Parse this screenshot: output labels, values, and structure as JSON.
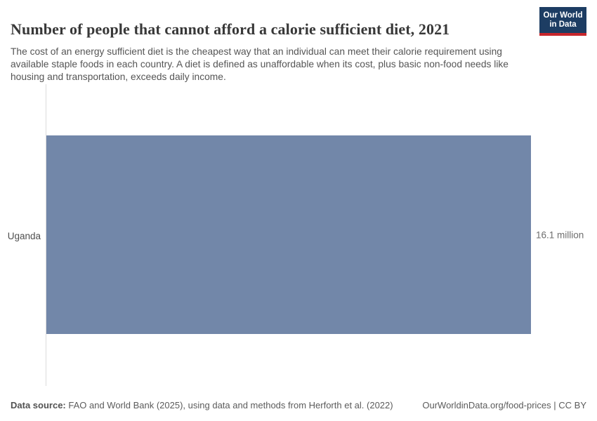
{
  "header": {
    "title": "Number of people that cannot afford a calorie sufficient diet, 2021",
    "subtitle": "The cost of an energy sufficient diet is the cheapest way that an individual can meet their calorie requirement using available staple foods in each country. A diet is defined as unaffordable when its cost, plus basic non-food needs like housing and transportation, exceeds daily income."
  },
  "logo": {
    "line1": "Our World",
    "line2": "in Data",
    "bg_color": "#1d3d63",
    "stripe_color": "#c7262c"
  },
  "chart_data": {
    "type": "bar",
    "orientation": "horizontal",
    "categories": [
      "Uganda"
    ],
    "values": [
      16.1
    ],
    "value_labels": [
      "16.1 million"
    ],
    "unit": "million people",
    "title": "Number of people that cannot afford a calorie sufficient diet, 2021",
    "xlim": [
      0,
      16.1
    ],
    "grid": false,
    "legend": "none",
    "bar_color": "#7287a9",
    "axis_line_color": "#dcdcdc"
  },
  "footer": {
    "source_label": "Data source:",
    "source_text": " FAO and World Bank (2025), using data and methods from Herforth et al. (2022)",
    "credit": "OurWorldinData.org/food-prices | CC BY"
  }
}
